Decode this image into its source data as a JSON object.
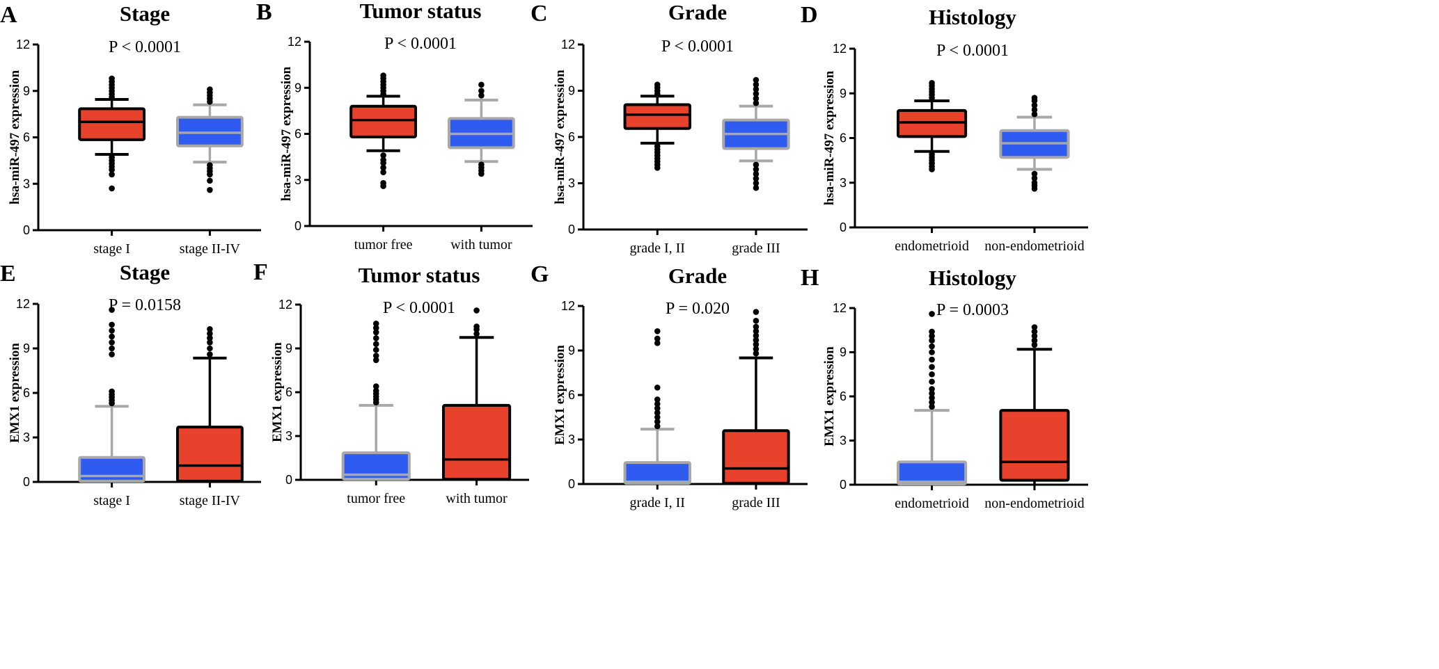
{
  "figure": {
    "colors": {
      "red": "#E8412C",
      "blue": "#2F5BF0",
      "black": "#000000",
      "grey": "#A8A8A8"
    }
  },
  "chart_data": [
    {
      "letter": "A",
      "title": "Stage",
      "pvalue": "P < 0.0001",
      "type": "box",
      "ylabel": "hsa-miR-497 expression",
      "ylim": [
        0,
        12
      ],
      "yticks": [
        0,
        3,
        6,
        9,
        12
      ],
      "categories": [
        "stage I",
        "stage II-IV"
      ],
      "series": [
        {
          "name": "stage I",
          "color": "red",
          "whisker_low": 4.9,
          "q1": 5.85,
          "median": 7.0,
          "q3": 7.85,
          "whisker_high": 8.45,
          "outliers": [
            2.7,
            3.6,
            3.9,
            4.1,
            4.3,
            4.5,
            4.7,
            8.6,
            8.8,
            9.0,
            9.2,
            9.4,
            9.6,
            9.8
          ]
        },
        {
          "name": "stage II-IV",
          "color": "blue",
          "whisker_low": 4.4,
          "q1": 5.45,
          "median": 6.3,
          "q3": 7.3,
          "whisker_high": 8.1,
          "outliers": [
            2.6,
            3.2,
            3.6,
            3.8,
            4.0,
            4.2,
            8.3,
            8.5,
            8.7,
            8.9,
            9.1
          ]
        }
      ]
    },
    {
      "letter": "B",
      "title": "Tumor status",
      "pvalue": "P < 0.0001",
      "type": "box",
      "ylabel": "hsa-miR-497 expression",
      "ylim": [
        0,
        12
      ],
      "yticks": [
        0,
        3,
        6,
        9,
        12
      ],
      "categories": [
        "tumor free",
        "with tumor"
      ],
      "series": [
        {
          "name": "tumor free",
          "color": "red",
          "whisker_low": 4.9,
          "q1": 5.8,
          "median": 6.9,
          "q3": 7.8,
          "whisker_high": 8.45,
          "outliers": [
            2.6,
            2.8,
            3.5,
            3.8,
            4.1,
            4.3,
            4.6,
            8.6,
            8.8,
            9.0,
            9.2,
            9.4,
            9.6,
            9.8
          ]
        },
        {
          "name": "with tumor",
          "color": "blue",
          "whisker_low": 4.2,
          "q1": 5.1,
          "median": 6.0,
          "q3": 7.0,
          "whisker_high": 8.2,
          "outliers": [
            3.4,
            3.6,
            3.8,
            4.0,
            8.5,
            8.8,
            9.2
          ]
        }
      ]
    },
    {
      "letter": "C",
      "title": "Grade",
      "pvalue": "P < 0.0001",
      "type": "box",
      "ylabel": "hsa-miR-497 expression",
      "ylim": [
        0,
        12
      ],
      "yticks": [
        0,
        3,
        6,
        9,
        12
      ],
      "categories": [
        "grade I, II",
        "grade III"
      ],
      "series": [
        {
          "name": "grade I, II",
          "color": "red",
          "whisker_low": 5.6,
          "q1": 6.55,
          "median": 7.45,
          "q3": 8.1,
          "whisker_high": 8.65,
          "outliers": [
            4.0,
            4.2,
            4.4,
            4.6,
            4.8,
            5.0,
            5.2,
            5.4,
            8.8,
            9.0,
            9.2,
            9.4
          ]
        },
        {
          "name": "grade III",
          "color": "blue",
          "whisker_low": 4.45,
          "q1": 5.25,
          "median": 6.2,
          "q3": 7.1,
          "whisker_high": 8.0,
          "outliers": [
            2.7,
            3.0,
            3.3,
            3.6,
            3.9,
            4.2,
            8.2,
            8.5,
            8.8,
            9.1,
            9.4,
            9.7
          ]
        }
      ]
    },
    {
      "letter": "D",
      "title": "Histology",
      "pvalue": "P < 0.0001",
      "type": "box",
      "ylabel": "hsa-miR-497 expression",
      "ylim": [
        0,
        12
      ],
      "yticks": [
        0,
        3,
        6,
        9,
        12
      ],
      "categories": [
        "endometrioid",
        "non-endometrioid"
      ],
      "series": [
        {
          "name": "endometrioid",
          "color": "red",
          "whisker_low": 5.1,
          "q1": 6.1,
          "median": 7.05,
          "q3": 7.85,
          "whisker_high": 8.5,
          "outliers": [
            3.9,
            4.1,
            4.3,
            4.5,
            4.7,
            4.9,
            8.7,
            8.9,
            9.1,
            9.3,
            9.5,
            9.7
          ]
        },
        {
          "name": "non-endometrioid",
          "color": "blue",
          "whisker_low": 3.9,
          "q1": 4.7,
          "median": 5.65,
          "q3": 6.5,
          "whisker_high": 7.4,
          "outliers": [
            2.6,
            2.8,
            3.0,
            3.3,
            3.6,
            7.6,
            7.9,
            8.2,
            8.5,
            8.7
          ]
        }
      ]
    },
    {
      "letter": "E",
      "title": "Stage",
      "pvalue": "P = 0.0158",
      "type": "box",
      "ylabel": "EMX1 expression",
      "ylim": [
        0,
        12
      ],
      "yticks": [
        0,
        3,
        6,
        9,
        12
      ],
      "categories": [
        "stage I",
        "stage II-IV"
      ],
      "series": [
        {
          "name": "stage I",
          "color": "blue",
          "whisker_low": 0.0,
          "q1": 0.05,
          "median": 0.4,
          "q3": 1.65,
          "whisker_high": 5.1,
          "outliers": [
            5.3,
            5.5,
            5.7,
            5.9,
            6.1,
            8.6,
            9.0,
            9.4,
            9.8,
            10.2,
            10.6,
            11.6
          ]
        },
        {
          "name": "stage II-IV",
          "color": "red",
          "whisker_low": 0.0,
          "q1": 0.05,
          "median": 1.1,
          "q3": 3.7,
          "whisker_high": 8.35,
          "outliers": [
            8.6,
            9.0,
            9.4,
            9.7,
            10.0,
            10.3
          ]
        }
      ]
    },
    {
      "letter": "F",
      "title": "Tumor status",
      "pvalue": "P < 0.0001",
      "type": "box",
      "ylabel": "EMX1 expression",
      "ylim": [
        0,
        12
      ],
      "yticks": [
        0,
        3,
        6,
        9,
        12
      ],
      "categories": [
        "tumor free",
        "with tumor"
      ],
      "series": [
        {
          "name": "tumor free",
          "color": "blue",
          "whisker_low": 0.0,
          "q1": 0.05,
          "median": 0.35,
          "q3": 1.85,
          "whisker_high": 5.1,
          "outliers": [
            5.3,
            5.5,
            5.7,
            5.9,
            6.1,
            6.4,
            8.2,
            8.5,
            8.9,
            9.3,
            9.7,
            10.1,
            10.4,
            10.7
          ]
        },
        {
          "name": "with tumor",
          "color": "red",
          "whisker_low": 0.0,
          "q1": 0.05,
          "median": 1.4,
          "q3": 5.1,
          "whisker_high": 9.75,
          "outliers": [
            10.0,
            10.3,
            10.5,
            11.6
          ]
        }
      ]
    },
    {
      "letter": "G",
      "title": "Grade",
      "pvalue": "P = 0.020",
      "type": "box",
      "ylabel": "EMX1 expression",
      "ylim": [
        0,
        12
      ],
      "yticks": [
        0,
        3,
        6,
        9,
        12
      ],
      "categories": [
        "grade I, II",
        "grade III"
      ],
      "series": [
        {
          "name": "grade I, II",
          "color": "blue",
          "whisker_low": 0.0,
          "q1": 0.05,
          "median": 0.15,
          "q3": 1.45,
          "whisker_high": 3.7,
          "outliers": [
            3.9,
            4.2,
            4.5,
            4.8,
            5.1,
            5.4,
            5.7,
            6.5,
            9.5,
            9.8,
            10.3
          ]
        },
        {
          "name": "grade III",
          "color": "red",
          "whisker_low": 0.0,
          "q1": 0.05,
          "median": 1.05,
          "q3": 3.6,
          "whisker_high": 8.5,
          "outliers": [
            8.8,
            9.1,
            9.4,
            9.7,
            10.0,
            10.3,
            10.6,
            11.0,
            11.6
          ]
        }
      ]
    },
    {
      "letter": "H",
      "title": "Histology",
      "pvalue": "P = 0.0003",
      "type": "box",
      "ylabel": "EMX1 expression",
      "ylim": [
        0,
        12
      ],
      "yticks": [
        0,
        3,
        6,
        9,
        12
      ],
      "categories": [
        "endometrioid",
        "non-endometrioid"
      ],
      "series": [
        {
          "name": "endometrioid",
          "color": "blue",
          "whisker_low": 0.0,
          "q1": 0.05,
          "median": 0.2,
          "q3": 1.55,
          "whisker_high": 5.05,
          "outliers": [
            5.3,
            5.6,
            5.9,
            6.2,
            6.5,
            7.0,
            7.5,
            8.0,
            8.5,
            9.0,
            9.4,
            9.8,
            10.1,
            10.4,
            11.6
          ]
        },
        {
          "name": "non-endometrioid",
          "color": "red",
          "whisker_low": 0.0,
          "q1": 0.3,
          "median": 1.55,
          "q3": 5.05,
          "whisker_high": 9.2,
          "outliers": [
            9.5,
            9.8,
            10.1,
            10.4,
            10.7
          ]
        }
      ]
    }
  ]
}
